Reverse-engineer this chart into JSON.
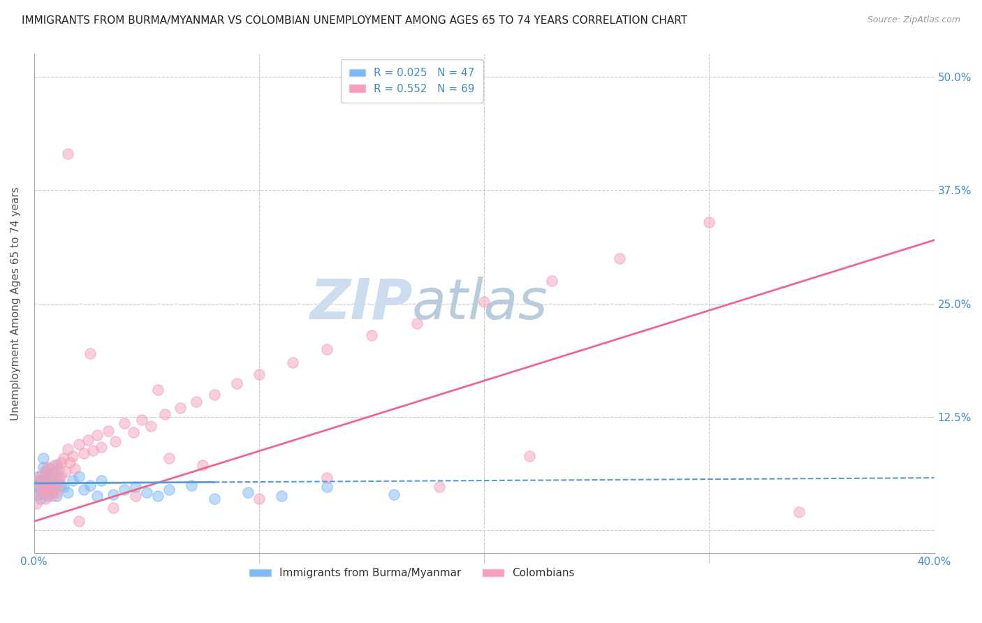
{
  "title": "IMMIGRANTS FROM BURMA/MYANMAR VS COLOMBIAN UNEMPLOYMENT AMONG AGES 65 TO 74 YEARS CORRELATION CHART",
  "source": "Source: ZipAtlas.com",
  "ylabel": "Unemployment Among Ages 65 to 74 years",
  "xlabel_blue": "Immigrants from Burma/Myanmar",
  "xlabel_pink": "Colombians",
  "xlim": [
    0.0,
    0.4
  ],
  "ylim": [
    -0.025,
    0.525
  ],
  "yticks": [
    0.0,
    0.125,
    0.25,
    0.375,
    0.5
  ],
  "ytick_labels_left": [
    "",
    "",
    "",
    "",
    ""
  ],
  "ytick_labels_right": [
    "",
    "12.5%",
    "25.0%",
    "37.5%",
    "50.0%"
  ],
  "xticks": [
    0.0,
    0.1,
    0.2,
    0.3,
    0.4
  ],
  "xtick_labels": [
    "0.0%",
    "",
    "",
    "",
    "40.0%"
  ],
  "blue_R": 0.025,
  "blue_N": 47,
  "pink_R": 0.552,
  "pink_N": 69,
  "blue_color": "#7eb8f7",
  "pink_color": "#f4a0b8",
  "blue_line_color": "#5599dd",
  "pink_line_color": "#ee6688",
  "title_color": "#222222",
  "axis_label_color": "#555555",
  "tick_color": "#4488cc",
  "grid_color": "#cccccc",
  "background_color": "#ffffff",
  "watermark_color": "#ccddef",
  "blue_scatter_x": [
    0.001,
    0.002,
    0.002,
    0.003,
    0.003,
    0.003,
    0.004,
    0.004,
    0.004,
    0.005,
    0.005,
    0.005,
    0.005,
    0.006,
    0.006,
    0.006,
    0.007,
    0.007,
    0.007,
    0.008,
    0.008,
    0.009,
    0.009,
    0.01,
    0.01,
    0.011,
    0.012,
    0.013,
    0.015,
    0.017,
    0.02,
    0.022,
    0.025,
    0.028,
    0.03,
    0.035,
    0.04,
    0.045,
    0.05,
    0.055,
    0.06,
    0.07,
    0.08,
    0.095,
    0.11,
    0.13,
    0.16
  ],
  "blue_scatter_y": [
    0.05,
    0.04,
    0.06,
    0.045,
    0.055,
    0.035,
    0.07,
    0.08,
    0.055,
    0.04,
    0.06,
    0.05,
    0.065,
    0.045,
    0.055,
    0.038,
    0.06,
    0.048,
    0.068,
    0.042,
    0.055,
    0.05,
    0.065,
    0.038,
    0.072,
    0.058,
    0.05,
    0.048,
    0.042,
    0.055,
    0.06,
    0.045,
    0.05,
    0.038,
    0.055,
    0.04,
    0.045,
    0.048,
    0.042,
    0.038,
    0.045,
    0.05,
    0.035,
    0.042,
    0.038,
    0.048,
    0.04
  ],
  "pink_scatter_x": [
    0.001,
    0.002,
    0.002,
    0.003,
    0.003,
    0.004,
    0.004,
    0.005,
    0.005,
    0.006,
    0.006,
    0.007,
    0.007,
    0.008,
    0.008,
    0.009,
    0.009,
    0.01,
    0.01,
    0.011,
    0.011,
    0.012,
    0.012,
    0.013,
    0.014,
    0.015,
    0.016,
    0.017,
    0.018,
    0.02,
    0.022,
    0.024,
    0.026,
    0.028,
    0.03,
    0.033,
    0.036,
    0.04,
    0.044,
    0.048,
    0.052,
    0.058,
    0.065,
    0.072,
    0.08,
    0.09,
    0.1,
    0.115,
    0.13,
    0.15,
    0.17,
    0.2,
    0.23,
    0.26,
    0.3,
    0.34,
    0.005,
    0.02,
    0.045,
    0.06,
    0.025,
    0.015,
    0.035,
    0.055,
    0.075,
    0.1,
    0.13,
    0.18,
    0.22
  ],
  "pink_scatter_y": [
    0.03,
    0.055,
    0.04,
    0.048,
    0.06,
    0.042,
    0.052,
    0.035,
    0.065,
    0.05,
    0.07,
    0.045,
    0.055,
    0.038,
    0.062,
    0.048,
    0.072,
    0.058,
    0.042,
    0.068,
    0.052,
    0.075,
    0.06,
    0.08,
    0.065,
    0.09,
    0.075,
    0.082,
    0.068,
    0.095,
    0.085,
    0.1,
    0.088,
    0.105,
    0.092,
    0.11,
    0.098,
    0.118,
    0.108,
    0.122,
    0.115,
    0.128,
    0.135,
    0.142,
    0.15,
    0.162,
    0.172,
    0.185,
    0.2,
    0.215,
    0.228,
    0.252,
    0.275,
    0.3,
    0.34,
    0.02,
    0.045,
    0.01,
    0.038,
    0.08,
    0.195,
    0.415,
    0.025,
    0.155,
    0.072,
    0.035,
    0.058,
    0.048,
    0.082
  ],
  "title_fontsize": 11,
  "source_fontsize": 9,
  "legend_fontsize": 11,
  "axis_label_fontsize": 11,
  "tick_fontsize": 11,
  "blue_line_x_solid_end": 0.12,
  "pink_line_start_y": 0.01,
  "pink_line_end_y": 0.32
}
